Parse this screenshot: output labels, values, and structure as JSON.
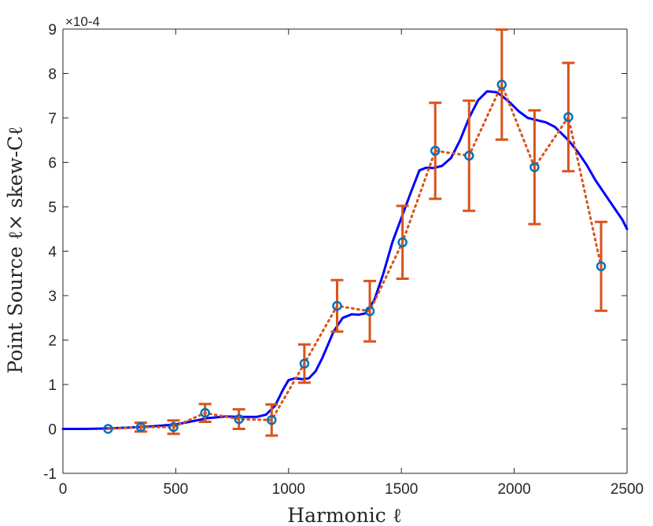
{
  "chart_data": {
    "type": "line",
    "xlabel": "Harmonic ℓ",
    "ylabel": "Point Source ℓ× skew-Cℓ",
    "y_exponent_label": "×10-4",
    "xlim": [
      0,
      2500
    ],
    "ylim": [
      -1,
      9
    ],
    "x_ticks": [
      0,
      500,
      1000,
      1500,
      2000,
      2500
    ],
    "y_ticks": [
      -1,
      0,
      1,
      2,
      3,
      4,
      5,
      6,
      7,
      8,
      9
    ],
    "grid": false,
    "series": [
      {
        "style": "solid line",
        "color": "#0000ff",
        "x": [
          0,
          100,
          200,
          300,
          400,
          500,
          560,
          640,
          720,
          800,
          860,
          900,
          940,
          975,
          1000,
          1030,
          1060,
          1090,
          1120,
          1150,
          1200,
          1240,
          1280,
          1310,
          1340,
          1380,
          1420,
          1460,
          1500,
          1540,
          1580,
          1610,
          1640,
          1680,
          1720,
          1760,
          1800,
          1840,
          1880,
          1920,
          1945,
          1980,
          2020,
          2060,
          2100,
          2140,
          2180,
          2240,
          2280,
          2320,
          2360,
          2400,
          2440,
          2480,
          2500
        ],
        "y": [
          0.0,
          0.0,
          0.01,
          0.03,
          0.06,
          0.1,
          0.16,
          0.24,
          0.28,
          0.27,
          0.27,
          0.32,
          0.52,
          0.88,
          1.1,
          1.14,
          1.12,
          1.14,
          1.3,
          1.6,
          2.2,
          2.5,
          2.58,
          2.57,
          2.6,
          2.9,
          3.5,
          4.2,
          4.75,
          5.3,
          5.82,
          5.88,
          5.87,
          5.92,
          6.1,
          6.5,
          7.0,
          7.4,
          7.6,
          7.58,
          7.5,
          7.35,
          7.15,
          7.0,
          6.95,
          6.9,
          6.8,
          6.5,
          6.25,
          5.95,
          5.6,
          5.3,
          5.0,
          4.7,
          4.5
        ]
      },
      {
        "style": "dotted line with circle markers and error bars",
        "color": "#d95319",
        "marker_color": "#0072bd",
        "x": [
          200,
          345,
          490,
          630,
          780,
          925,
          1070,
          1215,
          1360,
          1505,
          1650,
          1800,
          1945,
          2090,
          2240,
          2385
        ],
        "y": [
          0.0,
          0.04,
          0.04,
          0.36,
          0.22,
          0.2,
          1.47,
          2.77,
          2.65,
          4.2,
          6.26,
          6.15,
          7.75,
          5.89,
          7.02,
          3.66
        ],
        "error": [
          0.0,
          0.1,
          0.15,
          0.2,
          0.22,
          0.35,
          0.43,
          0.58,
          0.68,
          0.82,
          1.08,
          1.24,
          1.24,
          1.28,
          1.22,
          1.0
        ]
      }
    ]
  }
}
